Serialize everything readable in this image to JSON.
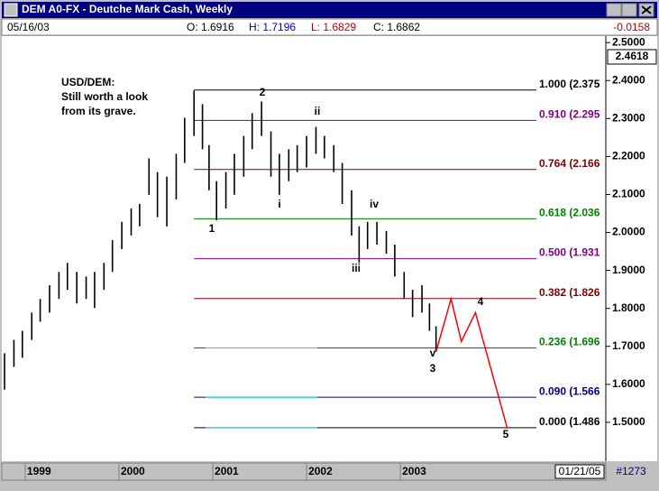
{
  "window": {
    "title": "DEM A0-FX - Deutche Mark Cash, Weekly"
  },
  "header": {
    "date": "05/16/03",
    "open": "O: 1.6916",
    "high": "H: 1.7196",
    "low": "L: 1.6829",
    "close": "C: 1.6862",
    "change": "-0.0158"
  },
  "last_price": "2.4618",
  "footer": {
    "date": "01/21/05",
    "count": "#1273"
  },
  "chart_data": {
    "type": "ohlc",
    "annotation": [
      "USD/DEM:",
      "Still worth a look",
      "from its grave."
    ],
    "x": [
      1998.78,
      1998.88,
      1998.97,
      1999.07,
      1999.16,
      1999.26,
      1999.36,
      1999.45,
      1999.55,
      1999.65,
      1999.74,
      1999.84,
      1999.93,
      2000.03,
      2000.13,
      2000.22,
      2000.32,
      2000.41,
      2000.51,
      2000.61,
      2000.7,
      2000.8,
      2000.89,
      2000.96,
      2001.04,
      2001.14,
      2001.23,
      2001.33,
      2001.42,
      2001.52,
      2001.62,
      2001.71,
      2001.81,
      2001.9,
      2002.0,
      2002.1,
      2002.19,
      2002.29,
      2002.38,
      2002.48,
      2002.56,
      2002.65,
      2002.75,
      2002.85,
      2002.94,
      2003.04,
      2003.13,
      2003.23,
      2003.31,
      2003.38
    ],
    "high": [
      1.682,
      1.717,
      1.741,
      1.789,
      1.825,
      1.861,
      1.896,
      1.92,
      1.896,
      1.884,
      1.896,
      1.92,
      1.98,
      2.028,
      2.063,
      2.075,
      2.195,
      2.159,
      2.147,
      2.207,
      2.302,
      2.374,
      2.338,
      2.23,
      2.135,
      2.159,
      2.207,
      2.254,
      2.314,
      2.345,
      2.266,
      2.207,
      2.219,
      2.23,
      2.254,
      2.278,
      2.254,
      2.23,
      2.183,
      2.111,
      2.016,
      2.028,
      2.028,
      2.004,
      1.968,
      1.896,
      1.849,
      1.861,
      1.813,
      1.753
    ],
    "low": [
      1.586,
      1.646,
      1.67,
      1.717,
      1.765,
      1.789,
      1.825,
      1.849,
      1.813,
      1.825,
      1.801,
      1.849,
      1.896,
      1.956,
      1.992,
      2.016,
      2.099,
      2.04,
      2.016,
      2.087,
      2.183,
      2.254,
      2.219,
      2.111,
      2.032,
      2.063,
      2.099,
      2.147,
      2.219,
      2.254,
      2.147,
      2.099,
      2.135,
      2.159,
      2.171,
      2.207,
      2.195,
      2.159,
      2.075,
      1.992,
      1.92,
      1.956,
      1.968,
      1.944,
      1.884,
      1.825,
      1.777,
      1.789,
      1.741,
      1.686
    ],
    "bar_color": "#000000",
    "xlim": [
      1998.77,
      2005.19
    ],
    "ylim": [
      1.4,
      2.517
    ],
    "xticks": [
      1999,
      2000,
      2001,
      2002,
      2003
    ],
    "yticks": [
      {
        "value": 1.5,
        "label": "1.5000"
      },
      {
        "value": 1.6,
        "label": "1.6000"
      },
      {
        "value": 1.7,
        "label": "1.7000"
      },
      {
        "value": 1.8,
        "label": "1.8000"
      },
      {
        "value": 1.9,
        "label": "1.9000"
      },
      {
        "value": 2.0,
        "label": "2.0000"
      },
      {
        "value": 2.1,
        "label": "2.1000"
      },
      {
        "value": 2.2,
        "label": "2.2000"
      },
      {
        "value": 2.3,
        "label": "2.3000"
      },
      {
        "value": 2.4,
        "label": "2.4000"
      },
      {
        "value": 2.5,
        "label": "2.5000"
      }
    ],
    "fib_levels": [
      {
        "label": "1.000 (2.375",
        "value": 2.375,
        "color": "#000000"
      },
      {
        "label": "0.910 (2.295",
        "value": 2.295,
        "color": "#800080"
      },
      {
        "label": "0.764 (2.166",
        "value": 2.166,
        "color": "#800000"
      },
      {
        "label": "0.618 (2.036",
        "value": 2.036,
        "color": "#008000"
      },
      {
        "label": "0.500 (1.931",
        "value": 1.931,
        "color": "#800080"
      },
      {
        "label": "0.382 (1.826",
        "value": 1.826,
        "color": "#800000"
      },
      {
        "label": "0.236 (1.696",
        "value": 1.696,
        "color": "#008000"
      },
      {
        "label": "0.090 (1.566",
        "value": 1.566,
        "color": "#000080"
      },
      {
        "label": "0.000 (1.486",
        "value": 1.486,
        "color": "#000000"
      }
    ],
    "projection": {
      "color": "#ff0000",
      "x": [
        2003.38,
        2003.54,
        2003.65,
        2003.8,
        2004.14
      ],
      "values": [
        1.686,
        1.825,
        1.713,
        1.789,
        1.484
      ]
    },
    "wave_labels": [
      "2",
      "ii",
      "i",
      "1",
      "iv",
      "iii",
      "v",
      "3",
      "4",
      "5"
    ]
  }
}
